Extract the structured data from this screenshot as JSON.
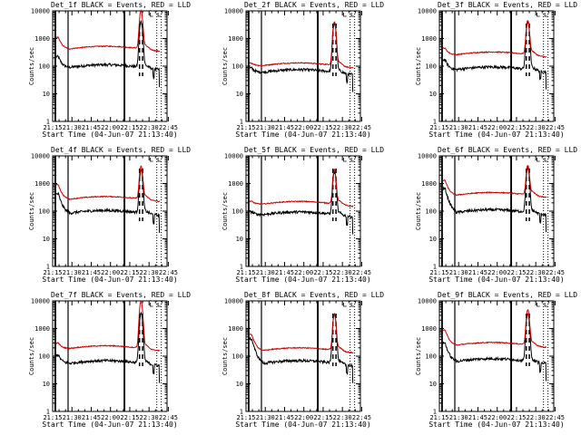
{
  "figure": {
    "layout": "3x3 grid of lightcurve panels",
    "background": "#ffffff"
  },
  "chart_data": [
    {
      "type": "line",
      "title": "Det_1f BLACK = Events, RED = LLD",
      "xlabel": "Start Time (04-Jun-07 21:13:40)",
      "ylabel": "Counts/sec",
      "yscale": "log",
      "ylim": [
        1,
        10000
      ],
      "x_ticks": [
        "21:15",
        "21:30",
        "21:45",
        "22:00",
        "22:15",
        "22:30",
        "22:45"
      ],
      "y_ticks": [
        "1",
        "10",
        "100",
        "1000",
        "10000"
      ],
      "series": [
        {
          "name": "Events",
          "color": "#000000",
          "base": 90,
          "init": 220,
          "peak": 4000
        },
        {
          "name": "LLD",
          "color": "#cc0000",
          "base": 420,
          "init": 1100,
          "peak": 9500
        }
      ]
    },
    {
      "type": "line",
      "title": "Det_2f BLACK = Events, RED = LLD",
      "xlabel": "Start Time (04-Jun-07 21:13:40)",
      "ylabel": "Counts/sec",
      "yscale": "log",
      "ylim": [
        1,
        10000
      ],
      "x_ticks": [
        "21:15",
        "21:30",
        "21:45",
        "22:00",
        "22:15",
        "22:30",
        "22:45"
      ],
      "y_ticks": [
        "1",
        "10",
        "100",
        "1000",
        "10000"
      ],
      "series": [
        {
          "name": "Events",
          "color": "#000000",
          "base": 60,
          "init": 85,
          "peak": 3500
        },
        {
          "name": "LLD",
          "color": "#cc0000",
          "base": 105,
          "init": 130,
          "peak": 4000
        }
      ]
    },
    {
      "type": "line",
      "title": "Det_3f BLACK = Events, RED = LLD",
      "xlabel": "Start Time (04-Jun-07 21:13:40)",
      "ylabel": "Counts/sec",
      "yscale": "log",
      "ylim": [
        1,
        10000
      ],
      "x_ticks": [
        "21:15",
        "21:30",
        "21:45",
        "22:00",
        "22:15",
        "22:30",
        "22:45"
      ],
      "y_ticks": [
        "1",
        "10",
        "100",
        "1000",
        "10000"
      ],
      "series": [
        {
          "name": "Events",
          "color": "#000000",
          "base": 75,
          "init": 170,
          "peak": 4000
        },
        {
          "name": "LLD",
          "color": "#cc0000",
          "base": 260,
          "init": 450,
          "peak": 4200
        }
      ]
    },
    {
      "type": "line",
      "title": "Det_4f BLACK = Events, RED = LLD",
      "xlabel": "Start Time (04-Jun-07 21:13:40)",
      "ylabel": "Counts/sec",
      "yscale": "log",
      "ylim": [
        1,
        10000
      ],
      "x_ticks": [
        "21:15",
        "21:30",
        "21:45",
        "22:00",
        "22:15",
        "22:30",
        "22:45"
      ],
      "y_ticks": [
        "1",
        "10",
        "100",
        "1000",
        "10000"
      ],
      "series": [
        {
          "name": "Events",
          "color": "#000000",
          "base": 85,
          "init": 420,
          "peak": 3000
        },
        {
          "name": "LLD",
          "color": "#cc0000",
          "base": 270,
          "init": 900,
          "peak": 3800
        }
      ]
    },
    {
      "type": "line",
      "title": "Det_5f BLACK = Events, RED = LLD",
      "xlabel": "Start Time (04-Jun-07 21:13:40)",
      "ylabel": "Counts/sec",
      "yscale": "log",
      "ylim": [
        1,
        10000
      ],
      "x_ticks": [
        "21:15",
        "21:30",
        "21:45",
        "22:00",
        "22:15",
        "22:30",
        "22:45"
      ],
      "y_ticks": [
        "1",
        "10",
        "100",
        "1000",
        "10000"
      ],
      "series": [
        {
          "name": "Events",
          "color": "#000000",
          "base": 75,
          "init": 95,
          "peak": 2600
        },
        {
          "name": "LLD",
          "color": "#cc0000",
          "base": 180,
          "init": 230,
          "peak": 2900
        }
      ]
    },
    {
      "type": "line",
      "title": "Det_6f BLACK = Events, RED = LLD",
      "xlabel": "Start Time (04-Jun-07 21:13:40)",
      "ylabel": "Counts/sec",
      "yscale": "log",
      "ylim": [
        1,
        10000
      ],
      "x_ticks": [
        "21:15",
        "21:30",
        "21:45",
        "22:00",
        "22:15",
        "22:30",
        "22:45"
      ],
      "y_ticks": [
        "1",
        "10",
        "100",
        "1000",
        "10000"
      ],
      "series": [
        {
          "name": "Events",
          "color": "#000000",
          "base": 90,
          "init": 650,
          "peak": 3500
        },
        {
          "name": "LLD",
          "color": "#cc0000",
          "base": 380,
          "init": 1300,
          "peak": 4000
        }
      ]
    },
    {
      "type": "line",
      "title": "Det_7f BLACK = Events, RED = LLD",
      "xlabel": "Start Time (04-Jun-07 21:13:40)",
      "ylabel": "Counts/sec",
      "yscale": "log",
      "ylim": [
        1,
        10000
      ],
      "x_ticks": [
        "21:15",
        "21:30",
        "21:45",
        "22:00",
        "22:15",
        "22:30",
        "22:45"
      ],
      "y_ticks": [
        "1",
        "10",
        "100",
        "1000",
        "10000"
      ],
      "series": [
        {
          "name": "Events",
          "color": "#000000",
          "base": 55,
          "init": 110,
          "peak": 3500
        },
        {
          "name": "LLD",
          "color": "#cc0000",
          "base": 190,
          "init": 300,
          "peak": 9500
        }
      ]
    },
    {
      "type": "line",
      "title": "Det_8f BLACK = Events, RED = LLD",
      "xlabel": "Start Time (04-Jun-07 21:13:40)",
      "ylabel": "Counts/sec",
      "yscale": "log",
      "ylim": [
        1,
        10000
      ],
      "x_ticks": [
        "21:15",
        "21:30",
        "21:45",
        "22:00",
        "22:15",
        "22:30",
        "22:45"
      ],
      "y_ticks": [
        "1",
        "10",
        "100",
        "1000",
        "10000"
      ],
      "series": [
        {
          "name": "Events",
          "color": "#000000",
          "base": 55,
          "init": 420,
          "peak": 3500
        },
        {
          "name": "LLD",
          "color": "#cc0000",
          "base": 160,
          "init": 600,
          "peak": 3000
        }
      ]
    },
    {
      "type": "line",
      "title": "Det_9f BLACK = Events, RED = LLD",
      "xlabel": "Start Time (04-Jun-07 21:13:40)",
      "ylabel": "Counts/sec",
      "yscale": "log",
      "ylim": [
        1,
        10000
      ],
      "x_ticks": [
        "21:15",
        "21:30",
        "21:45",
        "22:00",
        "22:15",
        "22:30",
        "22:45"
      ],
      "y_ticks": [
        "1",
        "10",
        "100",
        "1000",
        "10000"
      ],
      "series": [
        {
          "name": "Events",
          "color": "#000000",
          "base": 65,
          "init": 300,
          "peak": 3500
        },
        {
          "name": "LLD",
          "color": "#cc0000",
          "base": 250,
          "init": 900,
          "peak": 4500
        }
      ]
    }
  ]
}
